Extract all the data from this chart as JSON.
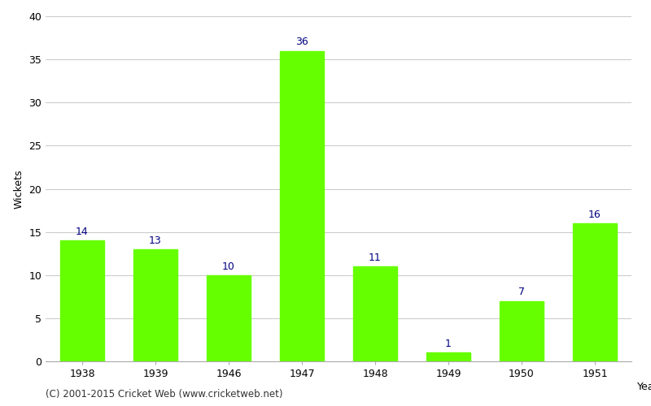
{
  "years": [
    "1938",
    "1939",
    "1946",
    "1947",
    "1948",
    "1949",
    "1950",
    "1951"
  ],
  "values": [
    14,
    13,
    10,
    36,
    11,
    1,
    7,
    16
  ],
  "bar_color": "#66ff00",
  "label_color": "#000080",
  "xlabel": "Year",
  "ylabel": "Wickets",
  "ylim": [
    0,
    40
  ],
  "yticks": [
    0,
    5,
    10,
    15,
    20,
    25,
    30,
    35,
    40
  ],
  "background_color": "#ffffff",
  "grid_color": "#cccccc",
  "footer": "(C) 2001-2015 Cricket Web (www.cricketweb.net)",
  "label_fontsize": 9,
  "axis_fontsize": 9,
  "footer_fontsize": 8.5,
  "ylabel_fontsize": 9
}
